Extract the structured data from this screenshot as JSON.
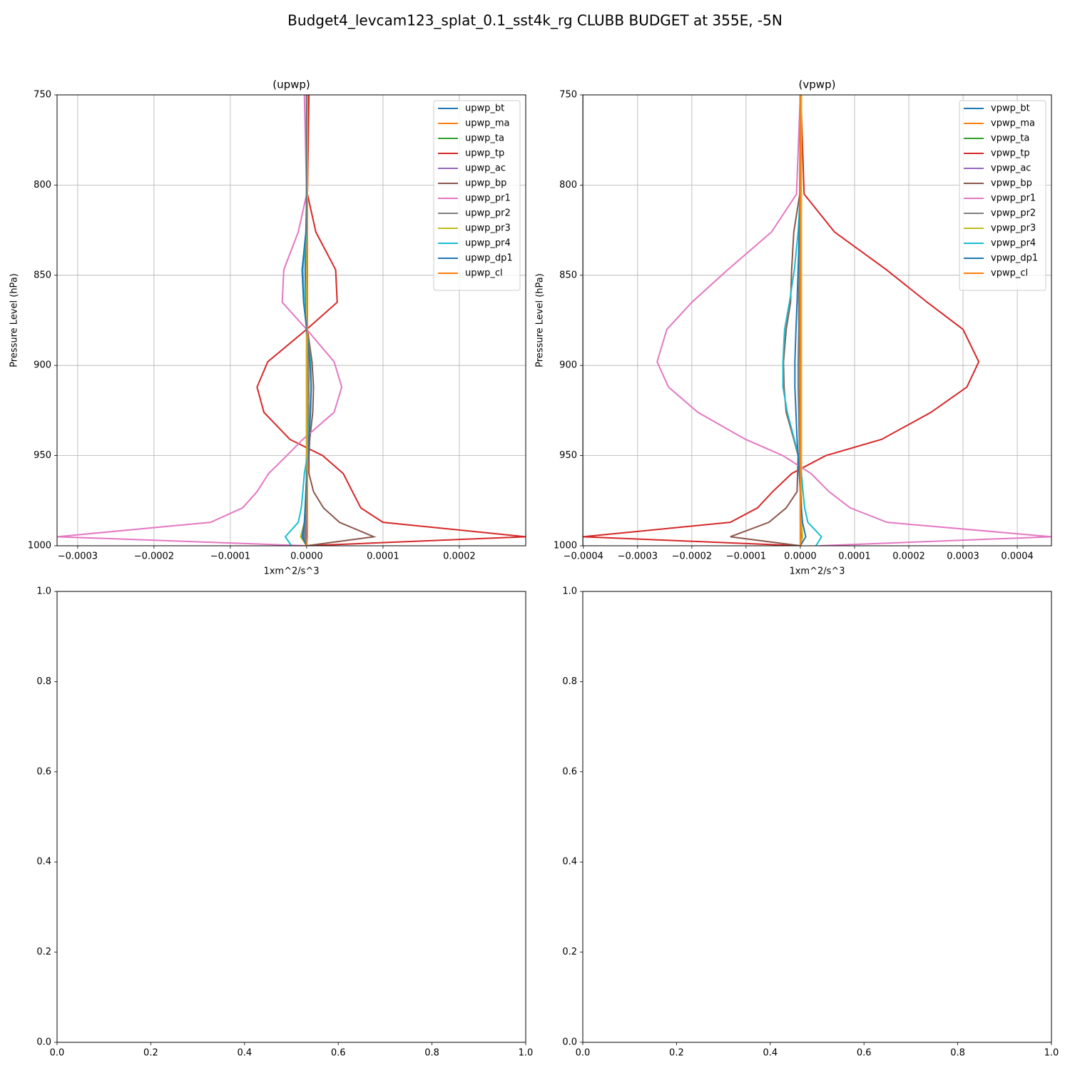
{
  "title": "Budget4_levcam123_splat_0.1_sst4k_rg CLUBB BUDGET at 355E, -5N",
  "chart_data": [
    {
      "type": "line",
      "title": "(upwp)",
      "xlabel": "1xm^2/s^3",
      "ylabel": "Pressure Level (hPa)",
      "levels": [
        750,
        805,
        826,
        847,
        865,
        880,
        898,
        912,
        926,
        941,
        950,
        960,
        970,
        979,
        987,
        995,
        1000
      ],
      "xlim": [
        -0.000327,
        0.000287
      ],
      "ylim": [
        1000,
        750
      ],
      "xticks": [
        {
          "value": -0.0003,
          "label": "−0.0003"
        },
        {
          "value": -0.0002,
          "label": "−0.0002"
        },
        {
          "value": -0.0001,
          "label": "−0.0001"
        },
        {
          "value": 0,
          "label": "0.0000"
        },
        0.0001,
        0.0002
      ],
      "yticks": [
        750,
        800,
        850,
        900,
        950,
        1000
      ],
      "grid": true,
      "legend": "upper right",
      "series": [
        {
          "name": "upwp_bt",
          "color": "#1f77b4",
          "values": [
            0,
            0,
            0,
            -2e-06,
            -1e-06,
            0,
            2e-06,
            3e-06,
            2e-06,
            1e-06,
            0,
            0,
            0,
            -1e-06,
            -2e-06,
            -4e-06,
            0
          ]
        },
        {
          "name": "upwp_ma",
          "color": "#ff7f0e",
          "values": [
            2e-06,
            1e-06,
            1e-06,
            1e-06,
            1e-06,
            0,
            0,
            0,
            0,
            0,
            0,
            0,
            0,
            0,
            0,
            0,
            0
          ]
        },
        {
          "name": "upwp_ta",
          "color": "#2ca02c",
          "values": [
            0,
            0,
            0,
            0,
            0,
            0,
            0,
            0,
            0,
            0,
            0,
            0,
            0,
            0,
            0,
            -2e-06,
            0
          ]
        },
        {
          "name": "upwp_tp",
          "color": "#d62728",
          "values": [
            3e-06,
            1e-06,
            1.2e-05,
            3.8e-05,
            4e-05,
            0,
            -5.1e-05,
            -6.5e-05,
            -5.6e-05,
            -2.2e-05,
            2.1e-05,
            4.8e-05,
            6e-05,
            7.1e-05,
            0.0001,
            0.000287,
            0
          ]
        },
        {
          "name": "upwp_ac",
          "color": "#9467bd",
          "values": [
            0,
            0,
            0,
            0,
            0,
            0,
            0,
            0,
            0,
            0,
            0,
            0,
            0,
            0,
            0,
            0,
            0
          ]
        },
        {
          "name": "upwp_bp",
          "color": "#8c564b",
          "values": [
            1e-06,
            1e-06,
            1e-06,
            1e-06,
            1e-06,
            1e-06,
            7e-06,
            9e-06,
            8e-06,
            4e-06,
            3e-06,
            3e-06,
            9e-06,
            2.2e-05,
            4.3e-05,
            8.8e-05,
            0
          ]
        },
        {
          "name": "upwp_pr1",
          "color": "#e377c2",
          "values": [
            -3e-06,
            0,
            -1.1e-05,
            -3e-05,
            -3.2e-05,
            0,
            3.6e-05,
            4.6e-05,
            3.6e-05,
            -5e-06,
            -2.6e-05,
            -5e-05,
            -6.5e-05,
            -8.4e-05,
            -0.000126,
            -0.000327,
            0
          ]
        },
        {
          "name": "upwp_pr2",
          "color": "#7f7f7f",
          "values": [
            0,
            0,
            0,
            0,
            0,
            0,
            2e-06,
            3e-06,
            2e-06,
            1e-06,
            0,
            0,
            0,
            0,
            -1e-06,
            -3e-06,
            0
          ]
        },
        {
          "name": "upwp_pr3",
          "color": "#bcbd22",
          "values": [
            1e-06,
            1e-06,
            1e-06,
            0,
            0,
            0,
            0,
            0,
            0,
            0,
            0,
            0,
            -1e-06,
            -2e-06,
            -3e-06,
            -8e-06,
            0
          ]
        },
        {
          "name": "upwp_pr4",
          "color": "#17becf",
          "values": [
            0,
            0,
            0,
            -5e-06,
            -3e-06,
            0,
            5e-06,
            6e-06,
            4e-06,
            2e-06,
            1e-06,
            -3e-06,
            -5e-06,
            -7e-06,
            -1.1e-05,
            -2.8e-05,
            -2e-05
          ]
        },
        {
          "name": "upwp_dp1",
          "color": "#1f77b4",
          "values": [
            0,
            0,
            -1e-06,
            -6e-06,
            -4e-06,
            0,
            4e-06,
            6e-06,
            5e-06,
            3e-06,
            2e-06,
            0,
            -1e-06,
            -2e-06,
            -3e-06,
            -6e-06,
            0
          ]
        },
        {
          "name": "upwp_cl",
          "color": "#ff7f0e",
          "values": [
            1e-06,
            1e-06,
            1e-06,
            1e-06,
            1e-06,
            1e-06,
            1e-06,
            1e-06,
            1e-06,
            1e-06,
            1e-06,
            1e-06,
            1e-06,
            1e-06,
            1e-06,
            1e-06,
            0
          ]
        }
      ]
    },
    {
      "type": "line",
      "title": "(vpwp)",
      "xlabel": "1xm^2/s^3",
      "ylabel": "Pressure Level (hPa)",
      "levels": [
        750,
        805,
        826,
        847,
        865,
        880,
        898,
        912,
        926,
        941,
        950,
        960,
        970,
        979,
        987,
        995,
        1000
      ],
      "xlim": [
        -0.000401,
        0.000463
      ],
      "ylim": [
        1000,
        750
      ],
      "xticks": [
        {
          "value": -0.0004,
          "label": "−0.0004"
        },
        {
          "value": -0.0003,
          "label": "−0.0003"
        },
        {
          "value": -0.0002,
          "label": "−0.0002"
        },
        {
          "value": -0.0001,
          "label": "−0.0001"
        },
        {
          "value": 0,
          "label": "0.0000"
        },
        0.0001,
        0.0002,
        0.0003,
        0.0004
      ],
      "yticks": [
        750,
        800,
        850,
        900,
        950,
        1000
      ],
      "grid": true,
      "legend": "upper right",
      "series": [
        {
          "name": "vpwp_bt",
          "color": "#1f77b4",
          "values": [
            0,
            0,
            0,
            -1e-06,
            -2e-06,
            -2e-06,
            -3e-06,
            -3e-06,
            -2e-06,
            -1e-06,
            0,
            0,
            0,
            1e-06,
            2e-06,
            4e-06,
            0
          ]
        },
        {
          "name": "vpwp_ma",
          "color": "#ff7f0e",
          "values": [
            1e-06,
            1e-06,
            1e-06,
            1e-06,
            1e-06,
            1e-06,
            1e-06,
            1e-06,
            1e-06,
            1e-06,
            1e-06,
            1e-06,
            1e-06,
            1e-06,
            1e-06,
            1e-06,
            0
          ]
        },
        {
          "name": "vpwp_ta",
          "color": "#2ca02c",
          "values": [
            0,
            0,
            0,
            0,
            0,
            0,
            0,
            0,
            0,
            0,
            0,
            0,
            0,
            0,
            0,
            3e-06,
            0
          ]
        },
        {
          "name": "vpwp_tp",
          "color": "#d62728",
          "values": [
            1e-06,
            7e-06,
            6.3e-05,
            0.000159,
            0.000234,
            0.0003,
            0.000329,
            0.000307,
            0.000241,
            0.00015,
            4.7e-05,
            -1.6e-05,
            -5.1e-05,
            -7.9e-05,
            -0.000129,
            -0.000401,
            0
          ]
        },
        {
          "name": "vpwp_ac",
          "color": "#9467bd",
          "values": [
            0,
            0,
            0,
            0,
            0,
            0,
            0,
            0,
            0,
            0,
            0,
            0,
            0,
            0,
            0,
            0,
            0
          ]
        },
        {
          "name": "vpwp_bp",
          "color": "#8c564b",
          "values": [
            0,
            -1e-06,
            -1.2e-05,
            -1.6e-05,
            -1.8e-05,
            -2.6e-05,
            -3.1e-05,
            -3e-05,
            -2.6e-05,
            -1.2e-05,
            -4e-06,
            -5e-06,
            -6e-06,
            -2.6e-05,
            -5.8e-05,
            -0.000129,
            0
          ]
        },
        {
          "name": "vpwp_pr1",
          "color": "#e377c2",
          "values": [
            0,
            -7e-06,
            -5.3e-05,
            -0.000134,
            -0.0002,
            -0.000246,
            -0.000264,
            -0.000243,
            -0.000189,
            -0.000101,
            -3.2e-05,
            2e-05,
            5.3e-05,
            9.2e-05,
            0.00016,
            0.000463,
            3.5e-05
          ]
        },
        {
          "name": "vpwp_pr2",
          "color": "#7f7f7f",
          "values": [
            0,
            0,
            -1e-06,
            -2e-06,
            -3e-06,
            -3e-06,
            -4e-06,
            -4e-06,
            -3e-06,
            -2e-06,
            -1e-06,
            0,
            0,
            1e-06,
            2e-06,
            3e-06,
            0
          ]
        },
        {
          "name": "vpwp_pr3",
          "color": "#bcbd22",
          "values": [
            2e-06,
            2e-06,
            2e-06,
            2e-06,
            2e-06,
            2e-06,
            2e-06,
            2e-06,
            2e-06,
            2e-06,
            2e-06,
            2e-06,
            2e-06,
            2e-06,
            2e-06,
            4e-06,
            0
          ]
        },
        {
          "name": "vpwp_pr4",
          "color": "#17becf",
          "values": [
            0,
            0,
            -4e-06,
            -1.1e-05,
            -2e-05,
            -2.9e-05,
            -3.2e-05,
            -3.2e-05,
            -2.4e-05,
            -1.1e-05,
            -3e-06,
            2e-06,
            5e-06,
            8e-06,
            1.4e-05,
            3.9e-05,
            2.9e-05
          ]
        },
        {
          "name": "vpwp_dp1",
          "color": "#1f77b4",
          "values": [
            0,
            0,
            -2e-06,
            -4e-06,
            -6e-06,
            -8e-06,
            -1e-05,
            -1e-05,
            -8e-06,
            -6e-06,
            -4e-06,
            -2e-06,
            0,
            2e-06,
            4e-06,
            1e-05,
            0
          ]
        },
        {
          "name": "vpwp_cl",
          "color": "#ff7f0e",
          "values": [
            0,
            0,
            0,
            0,
            0,
            0,
            0,
            0,
            0,
            0,
            0,
            0,
            0,
            0,
            0,
            0,
            0
          ]
        }
      ]
    },
    {
      "type": "empty",
      "xlim": [
        0,
        1
      ],
      "ylim": [
        0,
        1
      ],
      "xticks": [
        {
          "value": 0,
          "label": "0.0"
        },
        0.2,
        0.4,
        0.6,
        0.8,
        {
          "value": 1,
          "label": "1.0"
        }
      ],
      "yticks": [
        {
          "value": 0,
          "label": "0.0"
        },
        0.2,
        0.4,
        0.6,
        0.8,
        {
          "value": 1,
          "label": "1.0"
        }
      ]
    },
    {
      "type": "empty",
      "xlim": [
        0,
        1
      ],
      "ylim": [
        0,
        1
      ],
      "xticks": [
        {
          "value": 0,
          "label": "0.0"
        },
        0.2,
        0.4,
        0.6,
        0.8,
        {
          "value": 1,
          "label": "1.0"
        }
      ],
      "yticks": [
        {
          "value": 0,
          "label": "0.0"
        },
        0.2,
        0.4,
        0.6,
        0.8,
        {
          "value": 1,
          "label": "1.0"
        }
      ]
    }
  ]
}
